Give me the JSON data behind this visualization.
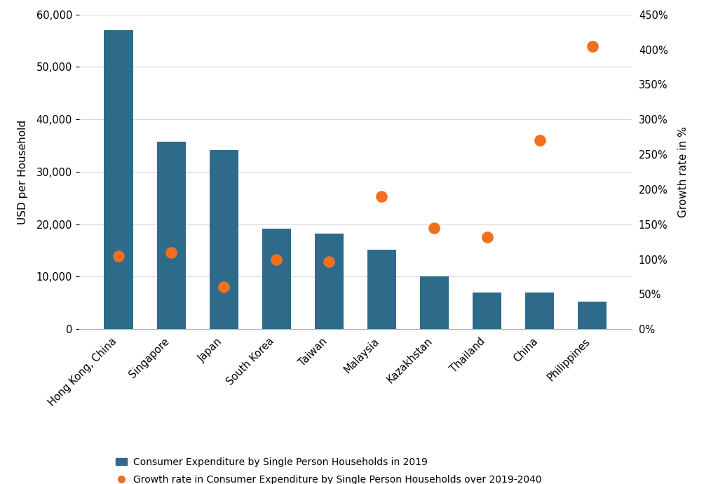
{
  "categories": [
    "Hong Kong, China",
    "Singapore",
    "Japan",
    "South Korea",
    "Taiwan",
    "Malaysia",
    "Kazakhstan",
    "Thailand",
    "China",
    "Philippines"
  ],
  "bar_values": [
    57000,
    35800,
    34200,
    19200,
    18200,
    15200,
    10000,
    7000,
    7000,
    5200
  ],
  "growth_rates": [
    105,
    110,
    60,
    100,
    97,
    190,
    145,
    132,
    270,
    405
  ],
  "bar_color": "#2e6b8a",
  "dot_color": "#f07020",
  "ylabel_left": "USD per Household",
  "ylabel_right": "Growth rate in %",
  "ylim_left": [
    0,
    60000
  ],
  "ylim_right": [
    0,
    450
  ],
  "yticks_left": [
    0,
    10000,
    20000,
    30000,
    40000,
    50000,
    60000
  ],
  "yticks_right": [
    0,
    50,
    100,
    150,
    200,
    250,
    300,
    350,
    400,
    450
  ],
  "legend_bar_label": "Consumer Expenditure by Single Person Households in 2019",
  "legend_dot_label": "Growth rate in Consumer Expenditure by Single Person Households over 2019-2040",
  "background_color": "#ffffff",
  "grid_color": "#d9d9d9",
  "tick_label_fontsize": 10.5,
  "axis_label_fontsize": 11
}
